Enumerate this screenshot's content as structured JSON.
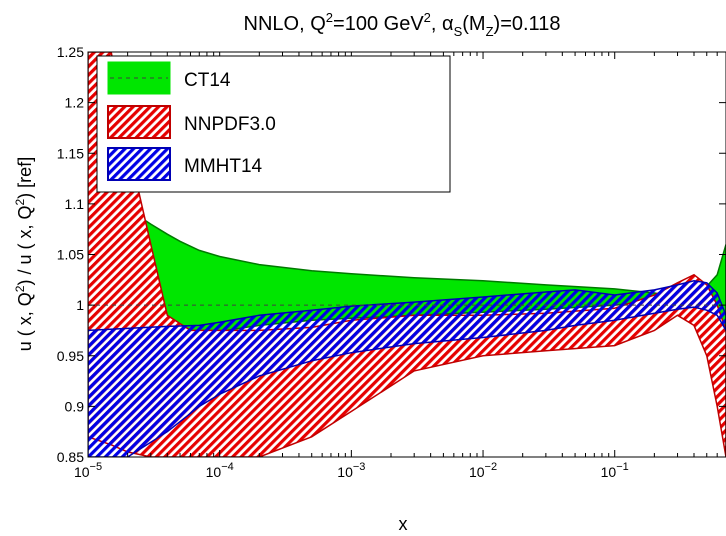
{
  "chart_data": {
    "type": "area",
    "title": "NNLO, Q²=100 GeV², αS(MZ)=0.118",
    "title_parts": {
      "a": "NNLO, Q",
      "a_sup": "2",
      "b": "=100 GeV",
      "b_sup": "2",
      "c": ", α",
      "c_sub": "S",
      "d": "(M",
      "d_sub": "Z",
      "e": ")=0.118"
    },
    "xlabel": "x",
    "ylabel": "u ( x, Q²) / u ( x, Q²) [ref]",
    "ylabel_parts": {
      "a": "u ( x, Q",
      "a_sup": "2",
      "b": ") / u ( x, Q",
      "b_sup": "2",
      "c": ") [ref]"
    },
    "x_scale": "log",
    "xlim": [
      1e-05,
      0.7
    ],
    "ylim": [
      0.85,
      1.25
    ],
    "x_ticks": [
      {
        "value": 1e-05,
        "base": "10",
        "exp": "−5"
      },
      {
        "value": 0.0001,
        "base": "10",
        "exp": "−4"
      },
      {
        "value": 0.001,
        "base": "10",
        "exp": "−3"
      },
      {
        "value": 0.01,
        "base": "10",
        "exp": "−2"
      },
      {
        "value": 0.1,
        "base": "10",
        "exp": "−1"
      }
    ],
    "y_ticks": [
      "0.85",
      "0.9",
      "0.95",
      "1",
      "1.05",
      "1.1",
      "1.15",
      "1.2",
      "1.25"
    ],
    "grid": false,
    "legend_position": "top-left",
    "series": [
      {
        "name": "CT14",
        "style": "solid",
        "color": "#00e600",
        "edge": "#007a00",
        "central_line": "dashed",
        "x": [
          1e-05,
          1.5e-05,
          2e-05,
          3e-05,
          4e-05,
          5e-05,
          7e-05,
          0.0001,
          0.0002,
          0.0005,
          0.001,
          0.003,
          0.01,
          0.03,
          0.1,
          0.2,
          0.3,
          0.45,
          0.6,
          0.7
        ],
        "upper": [
          1.11,
          1.102,
          1.095,
          1.08,
          1.07,
          1.063,
          1.054,
          1.048,
          1.04,
          1.034,
          1.031,
          1.027,
          1.024,
          1.02,
          1.016,
          1.012,
          1.008,
          1.012,
          1.03,
          1.06
        ],
        "lower": [
          0.975,
          0.975,
          0.975,
          0.973,
          0.97,
          0.969,
          0.97,
          0.974,
          0.98,
          0.985,
          0.987,
          0.99,
          0.993,
          0.996,
          1.0,
          1.004,
          1.005,
          1.0,
          0.99,
          0.975
        ]
      },
      {
        "name": "NNPDF3.0",
        "style": "hatched",
        "color": "#e60000",
        "edge": "#c00000",
        "x": [
          1e-05,
          1.5e-05,
          2e-05,
          3e-05,
          4e-05,
          6e-05,
          0.0001,
          0.0002,
          0.0005,
          0.001,
          0.003,
          0.01,
          0.03,
          0.1,
          0.2,
          0.3,
          0.4,
          0.5,
          0.6,
          0.7
        ],
        "upper": [
          1.25,
          1.25,
          1.16,
          1.06,
          0.99,
          0.975,
          0.975,
          0.975,
          0.978,
          0.985,
          0.99,
          0.99,
          0.992,
          0.997,
          1.01,
          1.022,
          1.03,
          1.02,
          1.0,
          0.975
        ],
        "lower": [
          0.87,
          0.862,
          0.855,
          0.85,
          0.85,
          0.85,
          0.85,
          0.85,
          0.87,
          0.895,
          0.935,
          0.95,
          0.955,
          0.96,
          0.975,
          0.99,
          0.98,
          0.95,
          0.9,
          0.85
        ]
      },
      {
        "name": "MMHT14",
        "style": "hatched",
        "color": "#0000e6",
        "edge": "#0000b4",
        "x": [
          1e-05,
          2e-05,
          4e-05,
          7e-05,
          0.0001,
          0.0002,
          0.0005,
          0.001,
          0.003,
          0.01,
          0.03,
          0.05,
          0.1,
          0.2,
          0.3,
          0.4,
          0.5,
          0.6,
          0.7
        ],
        "upper": [
          0.975,
          0.977,
          0.979,
          0.98,
          0.983,
          0.99,
          0.995,
          0.999,
          1.003,
          1.008,
          1.013,
          1.015,
          1.01,
          1.015,
          1.02,
          1.024,
          1.022,
          1.012,
          0.99
        ],
        "lower": [
          0.85,
          0.85,
          0.875,
          0.9,
          0.912,
          0.93,
          0.945,
          0.953,
          0.962,
          0.968,
          0.975,
          0.98,
          0.985,
          0.992,
          0.996,
          0.998,
          0.995,
          0.99,
          0.975
        ]
      }
    ],
    "reference_line": {
      "y": 1.0,
      "style": "dashed"
    }
  }
}
